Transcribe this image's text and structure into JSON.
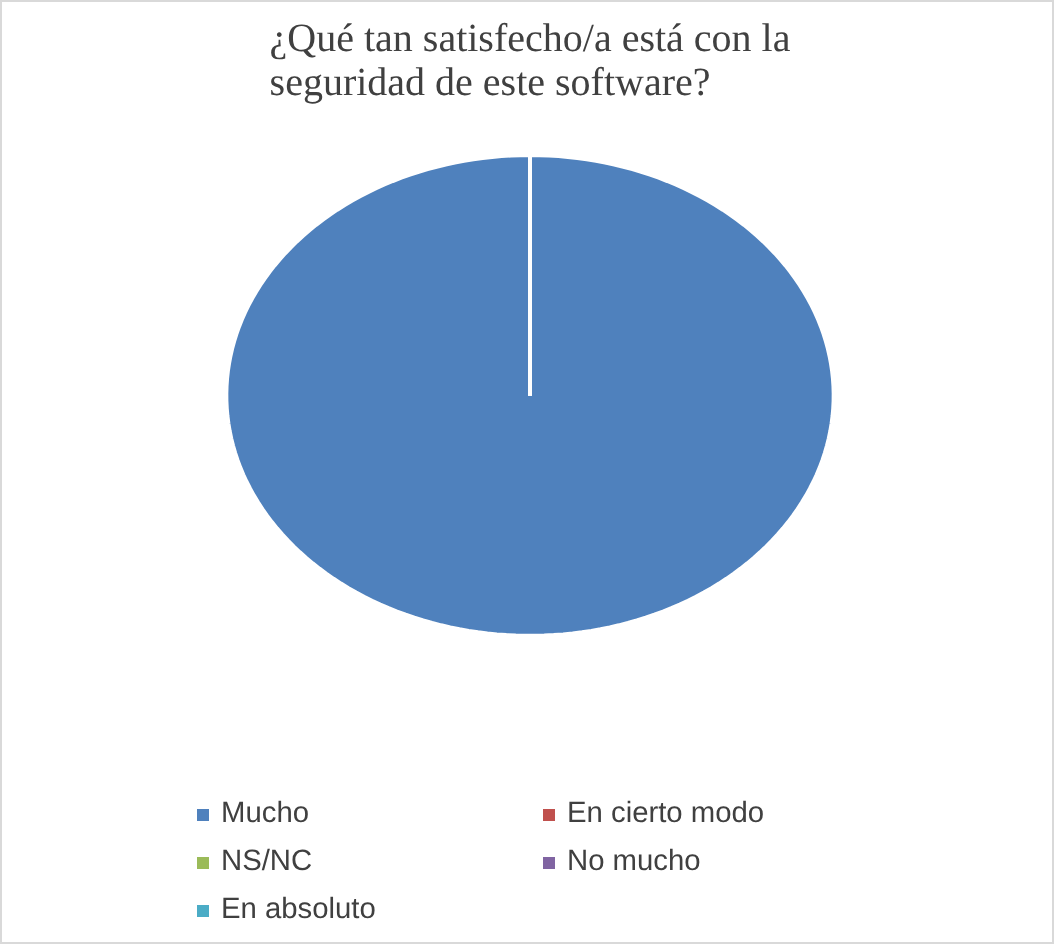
{
  "chart_data": {
    "type": "pie",
    "title": "¿Qué tan satisfecho/a está con la seguridad de este software?",
    "categories": [
      "Mucho",
      "En cierto modo",
      "NS/NC",
      "No mucho",
      "En absoluto"
    ],
    "values": [
      100,
      0,
      0,
      0,
      0
    ],
    "colors": [
      "#4f81bd",
      "#c0504d",
      "#9bbb59",
      "#8064a2",
      "#4bacc6"
    ],
    "legend": "bottom"
  }
}
